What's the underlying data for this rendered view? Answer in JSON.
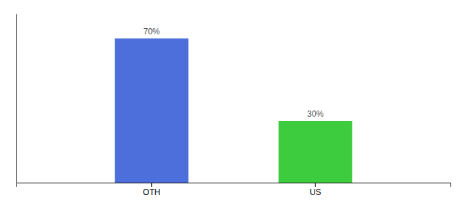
{
  "chart_data": {
    "type": "bar",
    "categories": [
      "OTH",
      "US"
    ],
    "values": [
      70,
      30
    ],
    "value_labels": [
      "70%",
      "30%"
    ],
    "colors": [
      "#4d6fdb",
      "#3dcc3d"
    ],
    "ylim": [
      0,
      82
    ],
    "data_labels": true,
    "tick_labels": "x",
    "grid": false
  }
}
